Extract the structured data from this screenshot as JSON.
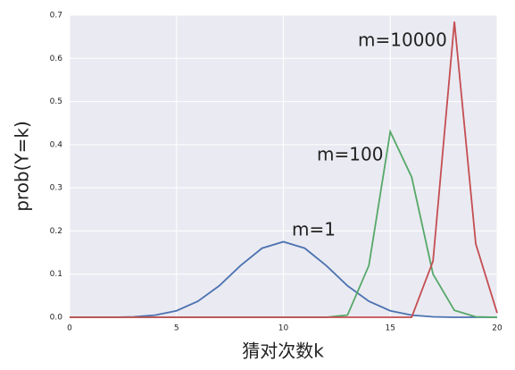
{
  "chart_data": {
    "type": "line",
    "x": [
      0,
      1,
      2,
      3,
      4,
      5,
      6,
      7,
      8,
      9,
      10,
      11,
      12,
      13,
      14,
      15,
      16,
      17,
      18,
      19,
      20
    ],
    "series": [
      {
        "color": "#4c72b0",
        "values": [
          0,
          0,
          0,
          0.001,
          0.005,
          0.015,
          0.037,
          0.073,
          0.12,
          0.16,
          0.175,
          0.16,
          0.12,
          0.073,
          0.037,
          0.015,
          0.005,
          0.001,
          0,
          0,
          0
        ]
      },
      {
        "color": "#55a868",
        "values": [
          0,
          0,
          0,
          0,
          0,
          0,
          0,
          0,
          0,
          0,
          0,
          0,
          0,
          0.005,
          0.12,
          0.43,
          0.325,
          0.1,
          0.016,
          0.001,
          0
        ]
      },
      {
        "color": "#c44e52",
        "values": [
          0,
          0,
          0,
          0,
          0,
          0,
          0,
          0,
          0,
          0,
          0,
          0,
          0,
          0,
          0,
          0,
          0,
          0.13,
          0.685,
          0.17,
          0.01
        ]
      }
    ],
    "annotations": [
      "m=1",
      "m=100",
      "m=10000"
    ],
    "xlabel": "猜对次数k",
    "ylabel": "prob(Y=k)",
    "xlim": [
      0,
      20
    ],
    "ylim": [
      0,
      0.7
    ],
    "xticks": [
      0,
      5,
      10,
      15,
      20
    ],
    "yticks": [
      {
        "value": 0,
        "label": "0.0"
      },
      0.1,
      0.2,
      0.3,
      0.4,
      0.5,
      0.6,
      0.7
    ],
    "grid": true
  }
}
